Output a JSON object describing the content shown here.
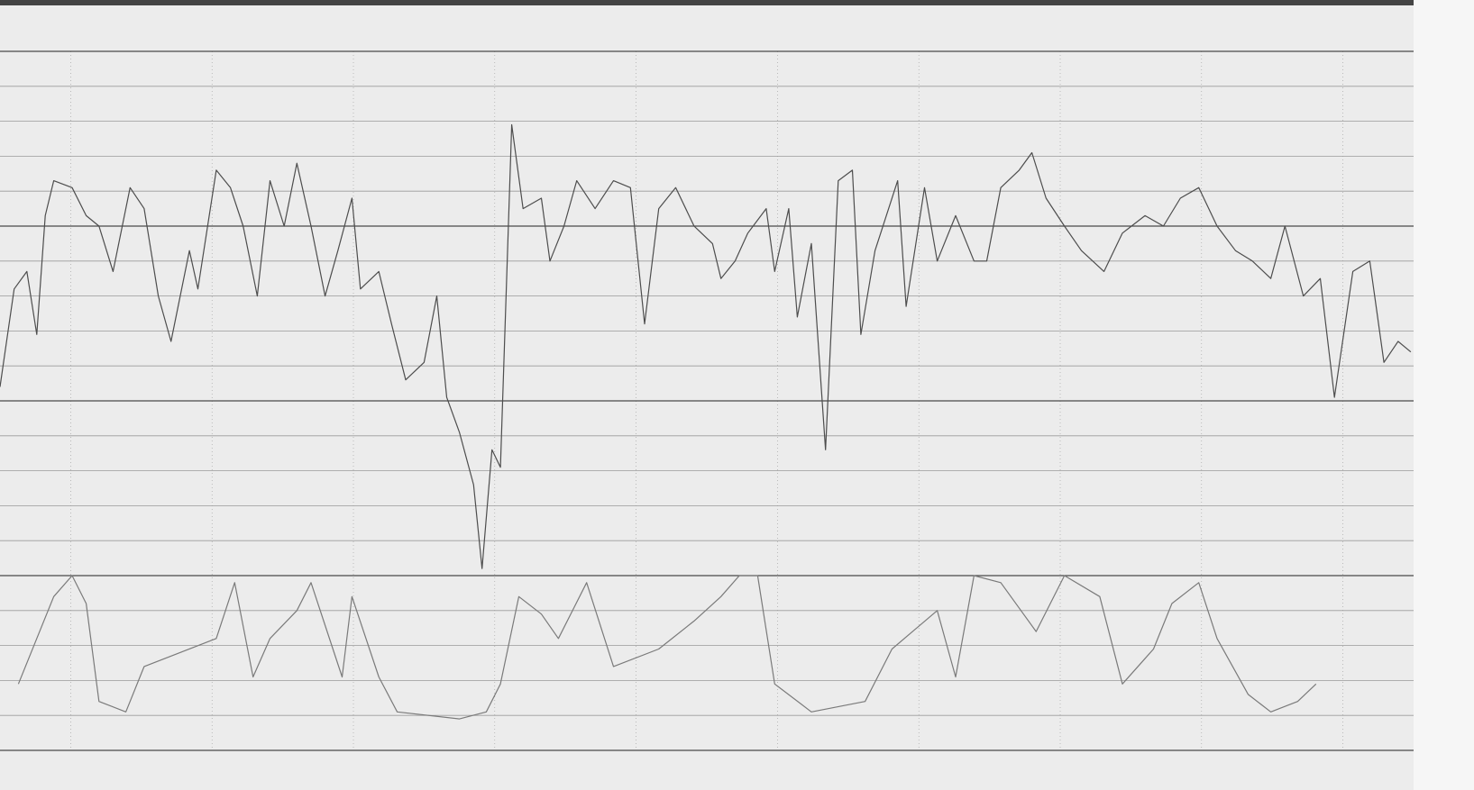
{
  "chart_data": {
    "type": "line",
    "xlim": [
      0,
      10
    ],
    "xticks": [
      0.5,
      1.5,
      2.5,
      3.5,
      4.5,
      5.5,
      6.5,
      7.5,
      8.5,
      9.5
    ],
    "ylim": [
      0,
      20
    ],
    "yticks": [
      0,
      1,
      2,
      3,
      4,
      5,
      6,
      7,
      8,
      9,
      10,
      11,
      12,
      13,
      14,
      15,
      16,
      17,
      18,
      19,
      20
    ],
    "major_yticks": [
      0,
      5,
      10,
      15,
      20
    ],
    "grid": true,
    "grid_color": "#9a9a9a",
    "major_color": "#4a4a4a",
    "background": "#ececec",
    "series": [
      {
        "color": "#4d4d4d",
        "x": [
          0,
          0.1,
          0.19,
          0.26,
          0.32,
          0.38,
          0.51,
          0.61,
          0.7,
          0.8,
          0.92,
          1.02,
          1.12,
          1.21,
          1.34,
          1.4,
          1.53,
          1.63,
          1.72,
          1.82,
          1.91,
          2.01,
          2.1,
          2.2,
          2.3,
          2.39,
          2.49,
          2.55,
          2.68,
          2.77,
          2.87,
          3.0,
          3.09,
          3.16,
          3.25,
          3.35,
          3.41,
          3.48,
          3.54,
          3.62,
          3.7,
          3.83,
          3.89,
          3.99,
          4.08,
          4.21,
          4.34,
          4.46,
          4.56,
          4.66,
          4.78,
          4.91,
          5.04,
          5.1,
          5.2,
          5.29,
          5.42,
          5.48,
          5.58,
          5.64,
          5.74,
          5.84,
          5.93,
          6.03,
          6.09,
          6.19,
          6.35,
          6.41,
          6.54,
          6.63,
          6.76,
          6.89,
          6.98,
          7.08,
          7.21,
          7.3,
          7.4,
          7.53,
          7.65,
          7.81,
          7.94,
          8.1,
          8.23,
          8.35,
          8.48,
          8.61,
          8.74,
          8.86,
          8.99,
          9.09,
          9.22,
          9.34,
          9.44,
          9.57,
          9.69,
          9.79,
          9.89,
          9.98
        ],
        "values": [
          10.4,
          13.2,
          13.7,
          11.9,
          15.3,
          16.3,
          16.1,
          15.3,
          15.0,
          13.7,
          16.1,
          15.5,
          13.0,
          11.7,
          14.3,
          13.2,
          16.6,
          16.1,
          15.0,
          13.0,
          16.3,
          15.0,
          16.8,
          15.0,
          13.0,
          14.3,
          15.8,
          13.2,
          13.7,
          12.2,
          10.6,
          11.1,
          13.0,
          10.1,
          9.1,
          7.6,
          5.2,
          8.6,
          8.1,
          17.9,
          15.5,
          15.8,
          14.0,
          15.0,
          16.3,
          15.5,
          16.3,
          16.1,
          12.2,
          15.5,
          16.1,
          15.0,
          14.5,
          13.5,
          14.0,
          14.8,
          15.5,
          13.7,
          15.5,
          12.4,
          14.5,
          8.6,
          16.3,
          16.6,
          11.9,
          14.3,
          16.3,
          12.7,
          16.1,
          14.0,
          15.3,
          14.0,
          14.0,
          16.1,
          16.6,
          17.1,
          15.8,
          15.0,
          14.3,
          13.7,
          14.8,
          15.3,
          15.0,
          15.8,
          16.1,
          15.0,
          14.3,
          14.0,
          13.5,
          15.0,
          13.0,
          13.5,
          10.1,
          13.7,
          14.0,
          11.1,
          11.7,
          11.4
        ]
      },
      {
        "color": "#7a7a7a",
        "x": [
          0.13,
          0.26,
          0.38,
          0.51,
          0.61,
          0.7,
          0.89,
          1.02,
          1.53,
          1.66,
          1.79,
          1.91,
          2.1,
          2.2,
          2.42,
          2.49,
          2.68,
          2.81,
          3.25,
          3.44,
          3.54,
          3.67,
          3.83,
          3.95,
          4.15,
          4.34,
          4.66,
          4.91,
          5.1,
          5.23,
          5.36,
          5.48,
          5.74,
          6.12,
          6.31,
          6.63,
          6.76,
          6.89,
          7.08,
          7.33,
          7.53,
          7.78,
          7.94,
          8.16,
          8.29,
          8.48,
          8.61,
          8.83,
          8.99,
          9.18,
          9.31
        ],
        "values": [
          1.9,
          3.2,
          4.4,
          5.0,
          4.2,
          1.4,
          1.1,
          2.4,
          3.2,
          4.8,
          2.1,
          3.2,
          4.0,
          4.8,
          2.1,
          4.4,
          2.1,
          1.1,
          0.9,
          1.1,
          1.9,
          4.4,
          3.9,
          3.2,
          4.8,
          2.4,
          2.9,
          3.7,
          4.4,
          5.0,
          5.0,
          1.9,
          1.1,
          1.4,
          2.9,
          4.0,
          2.1,
          5.0,
          4.8,
          3.4,
          5.0,
          4.4,
          1.9,
          2.9,
          4.2,
          4.8,
          3.2,
          1.6,
          1.1,
          1.4,
          1.9
        ]
      }
    ]
  }
}
